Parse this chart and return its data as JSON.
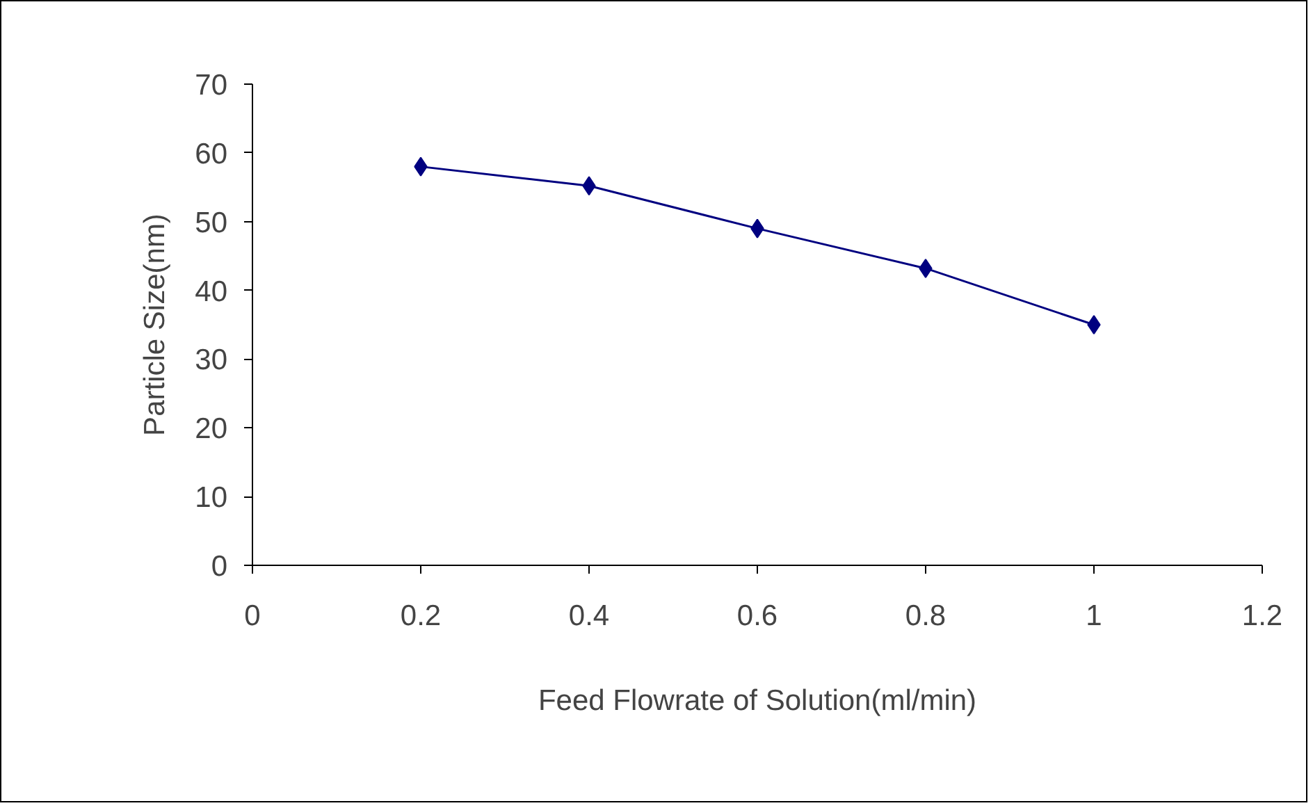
{
  "chart_data": {
    "type": "line",
    "xlabel": "Feed Flowrate of Solution(ml/min)",
    "ylabel": "Particle Size(nm)",
    "x": [
      0.2,
      0.4,
      0.6,
      0.8,
      1
    ],
    "series": [
      {
        "color": "#000080",
        "values": [
          58,
          55.2,
          49,
          43.2,
          35
        ]
      }
    ],
    "xlim": [
      0,
      1.2
    ],
    "xticks": [
      0,
      0.2,
      0.4,
      0.6,
      0.8,
      1,
      1.2
    ],
    "ylim": [
      0,
      70
    ],
    "yticks": [
      0,
      10,
      20,
      30,
      40,
      50,
      60,
      70
    ],
    "marker": "diamond",
    "line_style": "solid"
  }
}
